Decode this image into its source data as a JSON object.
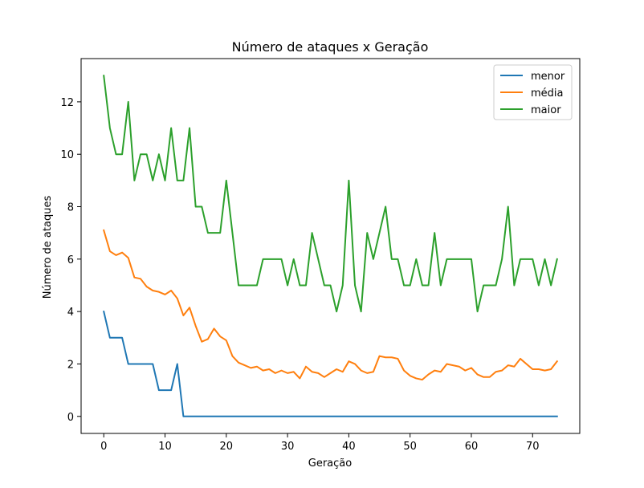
{
  "chart_data": {
    "type": "line",
    "title": "Número de ataques x Geração",
    "xlabel": "Geração",
    "ylabel": "Número de ataques",
    "xlim": [
      -3.7,
      77.7
    ],
    "ylim": [
      -0.65,
      13.65
    ],
    "xticks": [
      0,
      10,
      20,
      30,
      40,
      50,
      60,
      70
    ],
    "yticks": [
      0,
      2,
      4,
      6,
      8,
      10,
      12
    ],
    "grid": false,
    "legend_position": "top-right",
    "series": [
      {
        "name": "menor",
        "color": "#1f77b4",
        "values": [
          4,
          3,
          3,
          3,
          2,
          2,
          2,
          2,
          2,
          1,
          1,
          1,
          2,
          0,
          0,
          0,
          0,
          0,
          0,
          0,
          0,
          0,
          0,
          0,
          0,
          0,
          0,
          0,
          0,
          0,
          0,
          0,
          0,
          0,
          0,
          0,
          0,
          0,
          0,
          0,
          0,
          0,
          0,
          0,
          0,
          0,
          0,
          0,
          0,
          0,
          0,
          0,
          0,
          0,
          0,
          0,
          0,
          0,
          0,
          0,
          0,
          0,
          0,
          0,
          0,
          0,
          0,
          0,
          0,
          0,
          0,
          0,
          0,
          0,
          0
        ]
      },
      {
        "name": "média",
        "color": "#ff7f0e",
        "values": [
          7.1,
          6.3,
          6.15,
          6.25,
          6.05,
          5.3,
          5.25,
          4.95,
          4.8,
          4.75,
          4.65,
          4.8,
          4.5,
          3.85,
          4.15,
          3.45,
          2.85,
          2.95,
          3.35,
          3.05,
          2.9,
          2.3,
          2.05,
          1.95,
          1.85,
          1.9,
          1.75,
          1.8,
          1.65,
          1.75,
          1.65,
          1.7,
          1.45,
          1.9,
          1.7,
          1.65,
          1.5,
          1.65,
          1.8,
          1.7,
          2.1,
          2.0,
          1.75,
          1.65,
          1.7,
          2.3,
          2.25,
          2.25,
          2.2,
          1.75,
          1.55,
          1.45,
          1.4,
          1.6,
          1.75,
          1.7,
          2.0,
          1.95,
          1.9,
          1.75,
          1.85,
          1.6,
          1.5,
          1.5,
          1.7,
          1.75,
          1.95,
          1.9,
          2.2,
          2.0,
          1.8,
          1.8,
          1.75,
          1.8,
          2.1
        ]
      },
      {
        "name": "maior",
        "color": "#2ca02c",
        "values": [
          13,
          11,
          10,
          10,
          12,
          9,
          10,
          10,
          9,
          10,
          9,
          11,
          9,
          9,
          11,
          8,
          8,
          7,
          7,
          7,
          9,
          7,
          5,
          5,
          5,
          5,
          6,
          6,
          6,
          6,
          5,
          6,
          5,
          5,
          7,
          6,
          5,
          5,
          4,
          5,
          9,
          5,
          4,
          7,
          6,
          7,
          8,
          6,
          6,
          5,
          5,
          6,
          5,
          5,
          7,
          5,
          6,
          6,
          6,
          6,
          6,
          4,
          5,
          5,
          5,
          6,
          8,
          5,
          6,
          6,
          6,
          5,
          6,
          5,
          6
        ]
      }
    ]
  }
}
